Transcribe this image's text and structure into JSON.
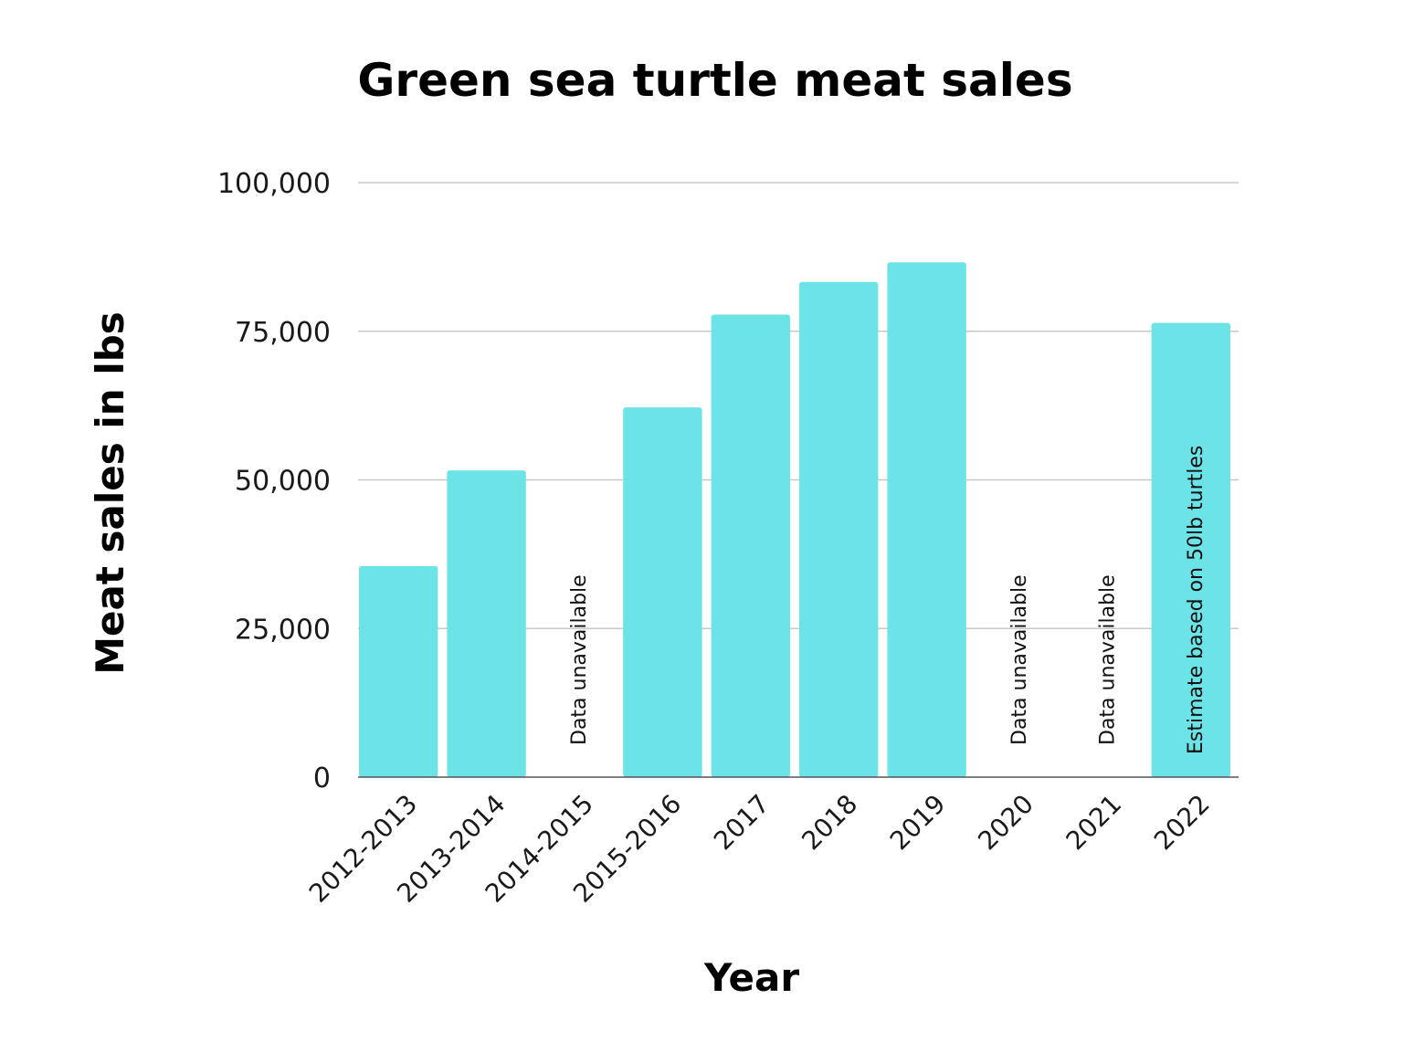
{
  "chart_data": {
    "type": "bar",
    "title": "Green sea turtle meat sales",
    "xlabel": "Year",
    "ylabel": "Meat sales in lbs",
    "ylim": [
      0,
      100000
    ],
    "yticks": [
      0,
      25000,
      50000,
      75000,
      100000
    ],
    "ytick_labels": [
      "0",
      "25,000",
      "50,000",
      "75,000",
      "100,000"
    ],
    "grid": true,
    "categories": [
      "2012-2013",
      "2013-2014",
      "2014-2015",
      "2015-2016",
      "2017",
      "2018",
      "2019",
      "2020",
      "2021",
      "2022"
    ],
    "values": [
      35500,
      51600,
      null,
      62200,
      77800,
      83300,
      86600,
      null,
      null,
      76400
    ],
    "bar_notes": [
      "",
      "",
      "Data unavailable",
      "",
      "",
      "",
      "",
      "Data unavailable",
      "Data unavailable",
      "Estimate based on 50lb turtles"
    ],
    "colors": {
      "bar": "#6ce3e6",
      "grid": "#c8c8c8",
      "axis": "#555555",
      "text": "#000000"
    }
  }
}
